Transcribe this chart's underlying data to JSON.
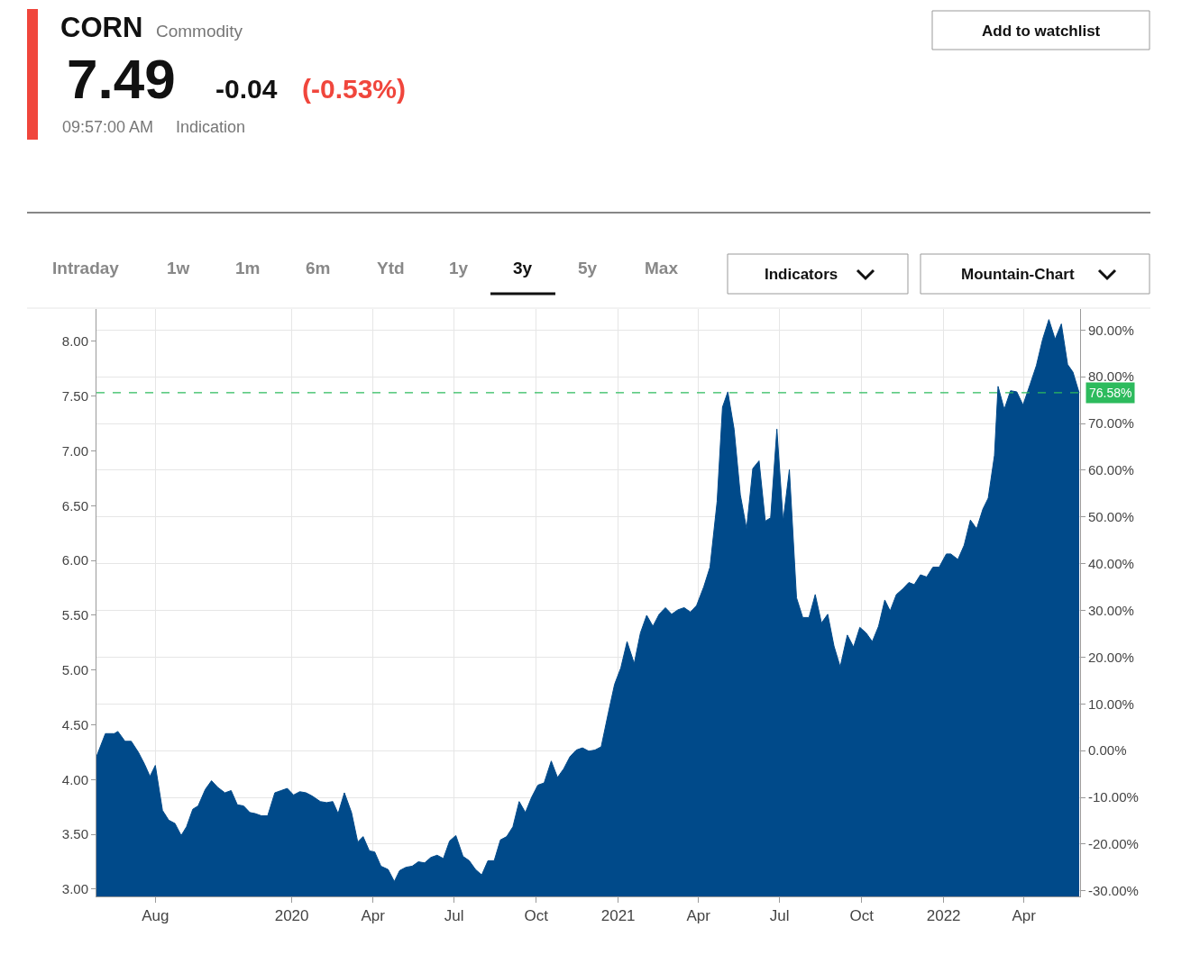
{
  "chart_data": {
    "type": "area",
    "title": "CORN",
    "subtitle": "Commodity",
    "annotations": [
      "7.49",
      "-0.04",
      "(-0.53%)",
      "09:57:00 AM",
      "Indication",
      "Add to watchlist",
      "Intraday",
      "1w",
      "1m",
      "6m",
      "Ytd",
      "1y",
      "3y",
      "5y",
      "Max",
      "Indicators",
      "Mountain-Chart"
    ],
    "x": [
      "2019-05-27",
      "2019-06-06",
      "2019-06-16",
      "2019-06-20",
      "2019-06-28",
      "2019-07-05",
      "2019-07-13",
      "2019-07-20",
      "2019-07-26",
      "2019-08-01",
      "2019-08-09",
      "2019-08-16",
      "2019-08-23",
      "2019-08-30",
      "2019-09-05",
      "2019-09-12",
      "2019-09-18",
      "2019-09-26",
      "2019-10-03",
      "2019-10-10",
      "2019-10-18",
      "2019-10-25",
      "2019-11-01",
      "2019-11-08",
      "2019-11-15",
      "2019-11-21",
      "2019-11-28",
      "2019-12-05",
      "2019-12-13",
      "2019-12-20",
      "2019-12-27",
      "2020-01-03",
      "2020-01-10",
      "2020-01-17",
      "2020-01-24",
      "2020-02-02",
      "2020-02-09",
      "2020-02-16",
      "2020-02-22",
      "2020-02-29",
      "2020-03-08",
      "2020-03-15",
      "2020-03-21",
      "2020-03-28",
      "2020-04-03",
      "2020-04-10",
      "2020-04-18",
      "2020-04-25",
      "2020-05-01",
      "2020-05-08",
      "2020-05-15",
      "2020-05-22",
      "2020-05-29",
      "2020-06-05",
      "2020-06-12",
      "2020-06-19",
      "2020-06-26",
      "2020-07-03",
      "2020-07-11",
      "2020-07-18",
      "2020-07-25",
      "2020-08-01",
      "2020-08-08",
      "2020-08-15",
      "2020-08-22",
      "2020-08-29",
      "2020-09-05",
      "2020-09-12",
      "2020-09-19",
      "2020-09-26",
      "2020-10-03",
      "2020-10-10",
      "2020-10-18",
      "2020-10-25",
      "2020-11-01",
      "2020-11-08",
      "2020-11-15",
      "2020-11-22",
      "2020-11-29",
      "2020-12-06",
      "2020-12-13",
      "2020-12-21",
      "2020-12-28",
      "2021-01-04",
      "2021-01-11",
      "2021-01-19",
      "2021-01-26",
      "2021-02-02",
      "2021-02-09",
      "2021-02-16",
      "2021-02-23",
      "2021-03-02",
      "2021-03-09",
      "2021-03-16",
      "2021-03-23",
      "2021-03-30",
      "2021-04-07",
      "2021-04-14",
      "2021-04-22",
      "2021-04-28",
      "2021-05-04",
      "2021-05-11",
      "2021-05-18",
      "2021-05-25",
      "2021-06-01",
      "2021-06-08",
      "2021-06-15",
      "2021-06-21",
      "2021-06-28",
      "2021-07-05",
      "2021-07-12",
      "2021-07-20",
      "2021-07-27",
      "2021-08-03",
      "2021-08-10",
      "2021-08-17",
      "2021-08-24",
      "2021-08-31",
      "2021-09-07",
      "2021-09-15",
      "2021-09-22",
      "2021-09-29",
      "2021-10-06",
      "2021-10-13",
      "2021-10-20",
      "2021-10-27",
      "2021-11-02",
      "2021-11-09",
      "2021-11-16",
      "2021-11-23",
      "2021-11-29",
      "2021-12-06",
      "2021-12-13",
      "2021-12-20",
      "2021-12-27",
      "2022-01-04",
      "2022-01-09",
      "2022-01-17",
      "2022-01-24",
      "2022-01-31",
      "2022-02-07",
      "2022-02-14",
      "2022-02-20",
      "2022-02-27",
      "2022-03-03",
      "2022-03-10",
      "2022-03-17",
      "2022-03-24",
      "2022-03-31",
      "2022-04-08",
      "2022-04-15",
      "2022-04-22",
      "2022-04-29",
      "2022-05-06",
      "2022-05-13",
      "2022-05-20",
      "2022-05-26",
      "2022-06-02"
    ],
    "series": [
      {
        "color": "#004a8a",
        "values": [
          4.21,
          4.42,
          4.42,
          4.44,
          4.35,
          4.35,
          4.25,
          4.14,
          4.03,
          4.13,
          3.72,
          3.63,
          3.6,
          3.49,
          3.57,
          3.73,
          3.76,
          3.91,
          3.99,
          3.93,
          3.88,
          3.9,
          3.77,
          3.76,
          3.7,
          3.69,
          3.67,
          3.67,
          3.88,
          3.9,
          3.92,
          3.86,
          3.89,
          3.88,
          3.85,
          3.8,
          3.79,
          3.8,
          3.69,
          3.88,
          3.7,
          3.43,
          3.48,
          3.35,
          3.34,
          3.21,
          3.18,
          3.07,
          3.17,
          3.2,
          3.21,
          3.25,
          3.24,
          3.29,
          3.31,
          3.28,
          3.44,
          3.49,
          3.3,
          3.26,
          3.18,
          3.13,
          3.26,
          3.26,
          3.45,
          3.48,
          3.57,
          3.8,
          3.7,
          3.84,
          3.95,
          3.97,
          4.17,
          4.02,
          4.1,
          4.21,
          4.27,
          4.29,
          4.26,
          4.27,
          4.3,
          4.61,
          4.87,
          5.02,
          5.26,
          5.06,
          5.34,
          5.5,
          5.4,
          5.51,
          5.57,
          5.51,
          5.55,
          5.57,
          5.53,
          5.59,
          5.76,
          5.94,
          6.54,
          7.4,
          7.54,
          7.2,
          6.6,
          6.29,
          6.84,
          6.91,
          6.36,
          6.39,
          7.2,
          6.36,
          6.83,
          5.66,
          5.48,
          5.48,
          5.69,
          5.43,
          5.51,
          5.22,
          5.03,
          5.32,
          5.21,
          5.39,
          5.34,
          5.26,
          5.4,
          5.64,
          5.54,
          5.69,
          5.74,
          5.8,
          5.78,
          5.87,
          5.85,
          5.94,
          5.94,
          6.06,
          6.06,
          6.01,
          6.14,
          6.37,
          6.29,
          6.47,
          6.57,
          6.96,
          7.59,
          7.38,
          7.55,
          7.54,
          7.42,
          7.61,
          7.78,
          8.02,
          8.2,
          8.02,
          8.16,
          7.79,
          7.72,
          7.53
        ]
      }
    ],
    "xlim": [
      "2019-05-27",
      "2022-06-03"
    ],
    "xticks": [
      {
        "value": "2019-08-01",
        "label": "Aug"
      },
      {
        "value": "2020-01-01",
        "label": "2020"
      },
      {
        "value": "2020-04-01",
        "label": "Apr"
      },
      {
        "value": "2020-07-01",
        "label": "Jul"
      },
      {
        "value": "2020-10-01",
        "label": "Oct"
      },
      {
        "value": "2021-01-01",
        "label": "2021"
      },
      {
        "value": "2021-04-01",
        "label": "Apr"
      },
      {
        "value": "2021-07-01",
        "label": "Jul"
      },
      {
        "value": "2021-10-01",
        "label": "Oct"
      },
      {
        "value": "2022-01-01",
        "label": "2022"
      },
      {
        "value": "2022-04-01",
        "label": "Apr"
      }
    ],
    "ylim": [
      2.934,
      8.296
    ],
    "yticks": [
      {
        "value": 3,
        "label": "3.00"
      },
      {
        "value": 3.5,
        "label": "3.50"
      },
      {
        "value": 4,
        "label": "4.00"
      },
      {
        "value": 4.5,
        "label": "4.50"
      },
      {
        "value": 5,
        "label": "5.00"
      },
      {
        "value": 5.5,
        "label": "5.50"
      },
      {
        "value": 6,
        "label": "6.00"
      },
      {
        "value": 6.5,
        "label": "6.50"
      },
      {
        "value": 7,
        "label": "7.00"
      },
      {
        "value": 7.5,
        "label": "7.50"
      },
      {
        "value": 8,
        "label": "8.00"
      }
    ],
    "y2lim": [
      -31.2,
      94.5
    ],
    "y2ticks": [
      {
        "value": -30,
        "label": "-30.00%"
      },
      {
        "value": -20,
        "label": "-20.00%"
      },
      {
        "value": -10,
        "label": "-10.00%"
      },
      {
        "value": 0,
        "label": "0.00%"
      },
      {
        "value": 10,
        "label": "10.00%"
      },
      {
        "value": 20,
        "label": "20.00%"
      },
      {
        "value": 30,
        "label": "30.00%"
      },
      {
        "value": 40,
        "label": "40.00%"
      },
      {
        "value": 50,
        "label": "50.00%"
      },
      {
        "value": 60,
        "label": "60.00%"
      },
      {
        "value": 70,
        "label": "70.00%"
      },
      {
        "value": 80,
        "label": "80.00%"
      },
      {
        "value": 90,
        "label": "90.00%"
      }
    ],
    "ref_lines": [
      {
        "axis": "y2",
        "value": 76.58,
        "label": "76.58%",
        "color": "#2dbb5d",
        "line_style": "dashed"
      }
    ],
    "grid": true
  }
}
